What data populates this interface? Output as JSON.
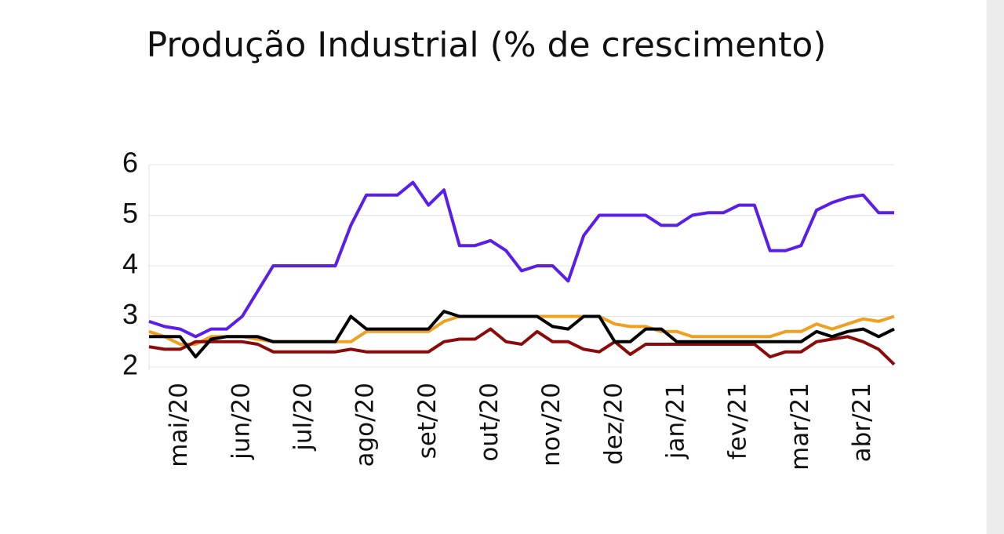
{
  "chart_data": {
    "type": "line",
    "title": "Produção Industrial (% de crescimento)",
    "categories": [
      null,
      null,
      "mai/20",
      null,
      null,
      null,
      "jun/20",
      null,
      null,
      null,
      "jul/20",
      null,
      null,
      null,
      "ago/20",
      null,
      null,
      null,
      "set/20",
      null,
      null,
      null,
      "out/20",
      null,
      null,
      null,
      "nov/20",
      null,
      null,
      null,
      "dez/20",
      null,
      null,
      null,
      "jan/21",
      null,
      null,
      null,
      "fev/21",
      null,
      null,
      null,
      "mar/21",
      null,
      null,
      null,
      "abr/21",
      null,
      null
    ],
    "series": [
      {
        "color": "#5a1ee8",
        "values": [
          2.9,
          2.8,
          2.75,
          2.6,
          2.75,
          2.75,
          3.0,
          3.5,
          4.0,
          4.0,
          4.0,
          4.0,
          4.0,
          4.8,
          5.4,
          5.4,
          5.4,
          5.65,
          5.2,
          5.5,
          4.4,
          4.4,
          4.5,
          4.3,
          3.9,
          4.0,
          4.0,
          3.7,
          4.6,
          5.0,
          5.0,
          5.0,
          5.0,
          4.8,
          4.8,
          5.0,
          5.05,
          5.05,
          5.2,
          5.2,
          4.3,
          4.3,
          4.4,
          5.1,
          5.25,
          5.35,
          5.4,
          5.05,
          5.05
        ]
      },
      {
        "color": "#f0a020",
        "values": [
          2.7,
          2.6,
          2.45,
          2.45,
          2.6,
          2.6,
          2.6,
          2.55,
          2.5,
          2.5,
          2.5,
          2.5,
          2.5,
          2.5,
          2.7,
          2.7,
          2.7,
          2.7,
          2.7,
          2.9,
          3.0,
          3.0,
          3.0,
          3.0,
          3.0,
          3.0,
          3.0,
          3.0,
          3.0,
          3.0,
          2.85,
          2.8,
          2.8,
          2.7,
          2.7,
          2.6,
          2.6,
          2.6,
          2.6,
          2.6,
          2.6,
          2.7,
          2.7,
          2.85,
          2.75,
          2.85,
          2.95,
          2.9,
          3.0
        ]
      },
      {
        "color": "#8b0a0a",
        "values": [
          2.4,
          2.35,
          2.35,
          2.5,
          2.5,
          2.5,
          2.5,
          2.45,
          2.3,
          2.3,
          2.3,
          2.3,
          2.3,
          2.35,
          2.3,
          2.3,
          2.3,
          2.3,
          2.3,
          2.5,
          2.55,
          2.55,
          2.75,
          2.5,
          2.45,
          2.7,
          2.5,
          2.5,
          2.35,
          2.3,
          2.5,
          2.25,
          2.45,
          2.45,
          2.45,
          2.45,
          2.45,
          2.45,
          2.45,
          2.45,
          2.2,
          2.3,
          2.3,
          2.5,
          2.55,
          2.6,
          2.5,
          2.35,
          2.05
        ]
      },
      {
        "color": "#000000",
        "values": [
          2.6,
          2.6,
          2.6,
          2.2,
          2.55,
          2.6,
          2.6,
          2.6,
          2.5,
          2.5,
          2.5,
          2.5,
          2.5,
          3.0,
          2.75,
          2.75,
          2.75,
          2.75,
          2.75,
          3.1,
          3.0,
          3.0,
          3.0,
          3.0,
          3.0,
          3.0,
          2.8,
          2.75,
          3.0,
          3.0,
          2.5,
          2.5,
          2.75,
          2.75,
          2.5,
          2.5,
          2.5,
          2.5,
          2.5,
          2.5,
          2.5,
          2.5,
          2.5,
          2.7,
          2.6,
          2.7,
          2.75,
          2.6,
          2.75
        ]
      }
    ],
    "ylim": [
      2,
      6
    ],
    "yticks": [
      2,
      3,
      4,
      5,
      6
    ],
    "grid": true
  }
}
